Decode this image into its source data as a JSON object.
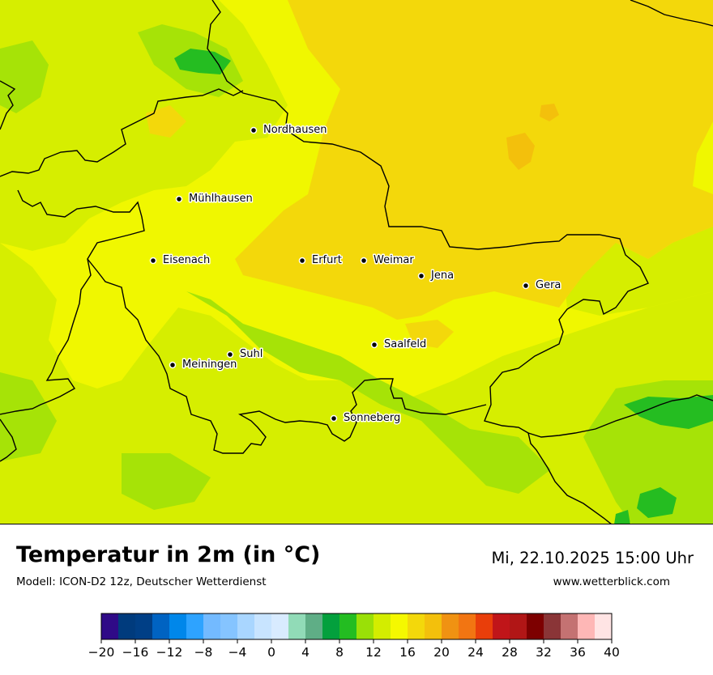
{
  "title": "Temperatur in 2m (in °C)",
  "model": "Modell: ICON-D2 12z, Deutscher Wetterdienst",
  "datetime": "Mi, 22.10.2025 15:00 Uhr",
  "website": "www.wetterblick.com",
  "cities": [
    {
      "name": "Nordhausen"
    },
    {
      "name": "Mühlhausen"
    },
    {
      "name": "Eisenach"
    },
    {
      "name": "Erfurt"
    },
    {
      "name": "Weimar"
    },
    {
      "name": "Jena"
    },
    {
      "name": "Gera"
    },
    {
      "name": "Saalfeld"
    },
    {
      "name": "Suhl"
    },
    {
      "name": "Meiningen"
    },
    {
      "name": "Sonneberg"
    }
  ],
  "legend": {
    "unit": "°C",
    "min": -20,
    "max": 40,
    "step": 2,
    "tick_labels": [
      "−20",
      "−16",
      "−12",
      "−8",
      "−4",
      "0",
      "4",
      "8",
      "12",
      "16",
      "20",
      "24",
      "28",
      "32",
      "36",
      "40"
    ],
    "colors": [
      "#2f0a87",
      "#003b7d",
      "#003f86",
      "#0063c2",
      "#0087ea",
      "#2ea3ff",
      "#73baff",
      "#85c4ff",
      "#a9d6ff",
      "#c8e4ff",
      "#d8ebff",
      "#91dbb7",
      "#5fae86",
      "#03a03d",
      "#23bd21",
      "#9ae007",
      "#d3ed00",
      "#f5f800",
      "#f3d80b",
      "#f3c00c",
      "#f09212",
      "#f27512",
      "#e93e0a",
      "#c01519",
      "#b11616",
      "#7d0000",
      "#8a3537",
      "#c47272",
      "#feb7b6",
      "#ffe4e4"
    ]
  }
}
